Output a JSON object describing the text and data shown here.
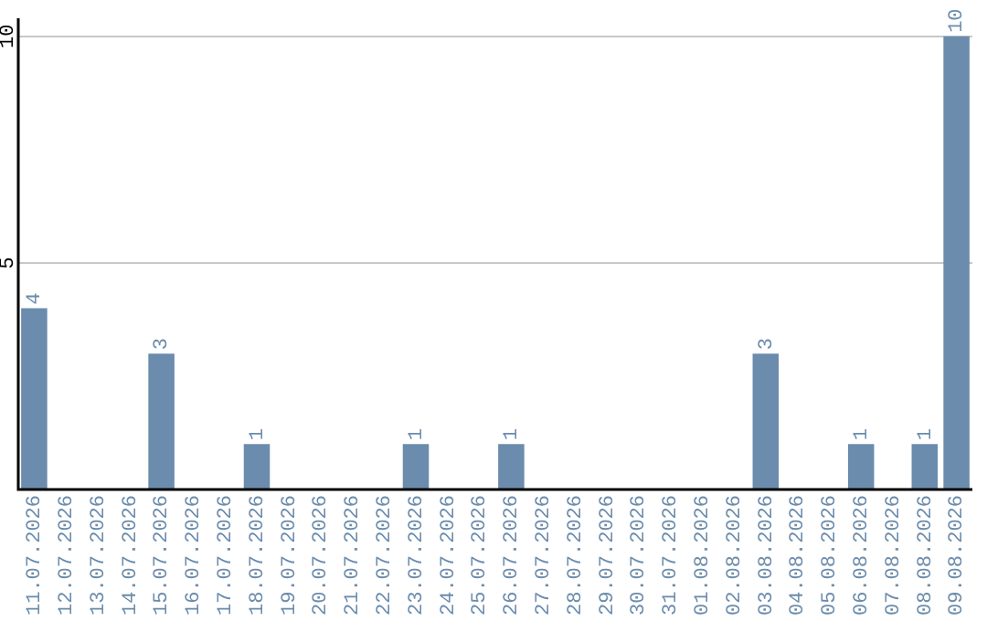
{
  "chart_data": {
    "type": "bar",
    "categories": [
      "11.07.2026",
      "12.07.2026",
      "13.07.2026",
      "14.07.2026",
      "15.07.2026",
      "16.07.2026",
      "17.07.2026",
      "18.07.2026",
      "19.07.2026",
      "20.07.2026",
      "21.07.2026",
      "22.07.2026",
      "23.07.2026",
      "24.07.2026",
      "25.07.2026",
      "26.07.2026",
      "27.07.2026",
      "28.07.2026",
      "29.07.2026",
      "30.07.2026",
      "31.07.2026",
      "01.08.2026",
      "02.08.2026",
      "03.08.2026",
      "04.08.2026",
      "05.08.2026",
      "06.08.2026",
      "07.08.2026",
      "08.08.2026",
      "09.08.2026"
    ],
    "values": [
      4,
      0,
      0,
      0,
      3,
      0,
      0,
      1,
      0,
      0,
      0,
      0,
      1,
      0,
      0,
      1,
      0,
      0,
      0,
      0,
      0,
      0,
      0,
      3,
      0,
      0,
      1,
      0,
      1,
      10
    ],
    "value_labels": [
      "4",
      null,
      null,
      null,
      "3",
      null,
      null,
      "1",
      null,
      null,
      null,
      null,
      "1",
      null,
      null,
      "1",
      null,
      null,
      null,
      null,
      null,
      null,
      null,
      "3",
      null,
      null,
      "1",
      null,
      "1",
      "10"
    ],
    "color": "#6b8cac",
    "ylim": [
      0,
      10.4
    ],
    "yticks": [
      5,
      10
    ],
    "grid": "y",
    "legend": false
  }
}
